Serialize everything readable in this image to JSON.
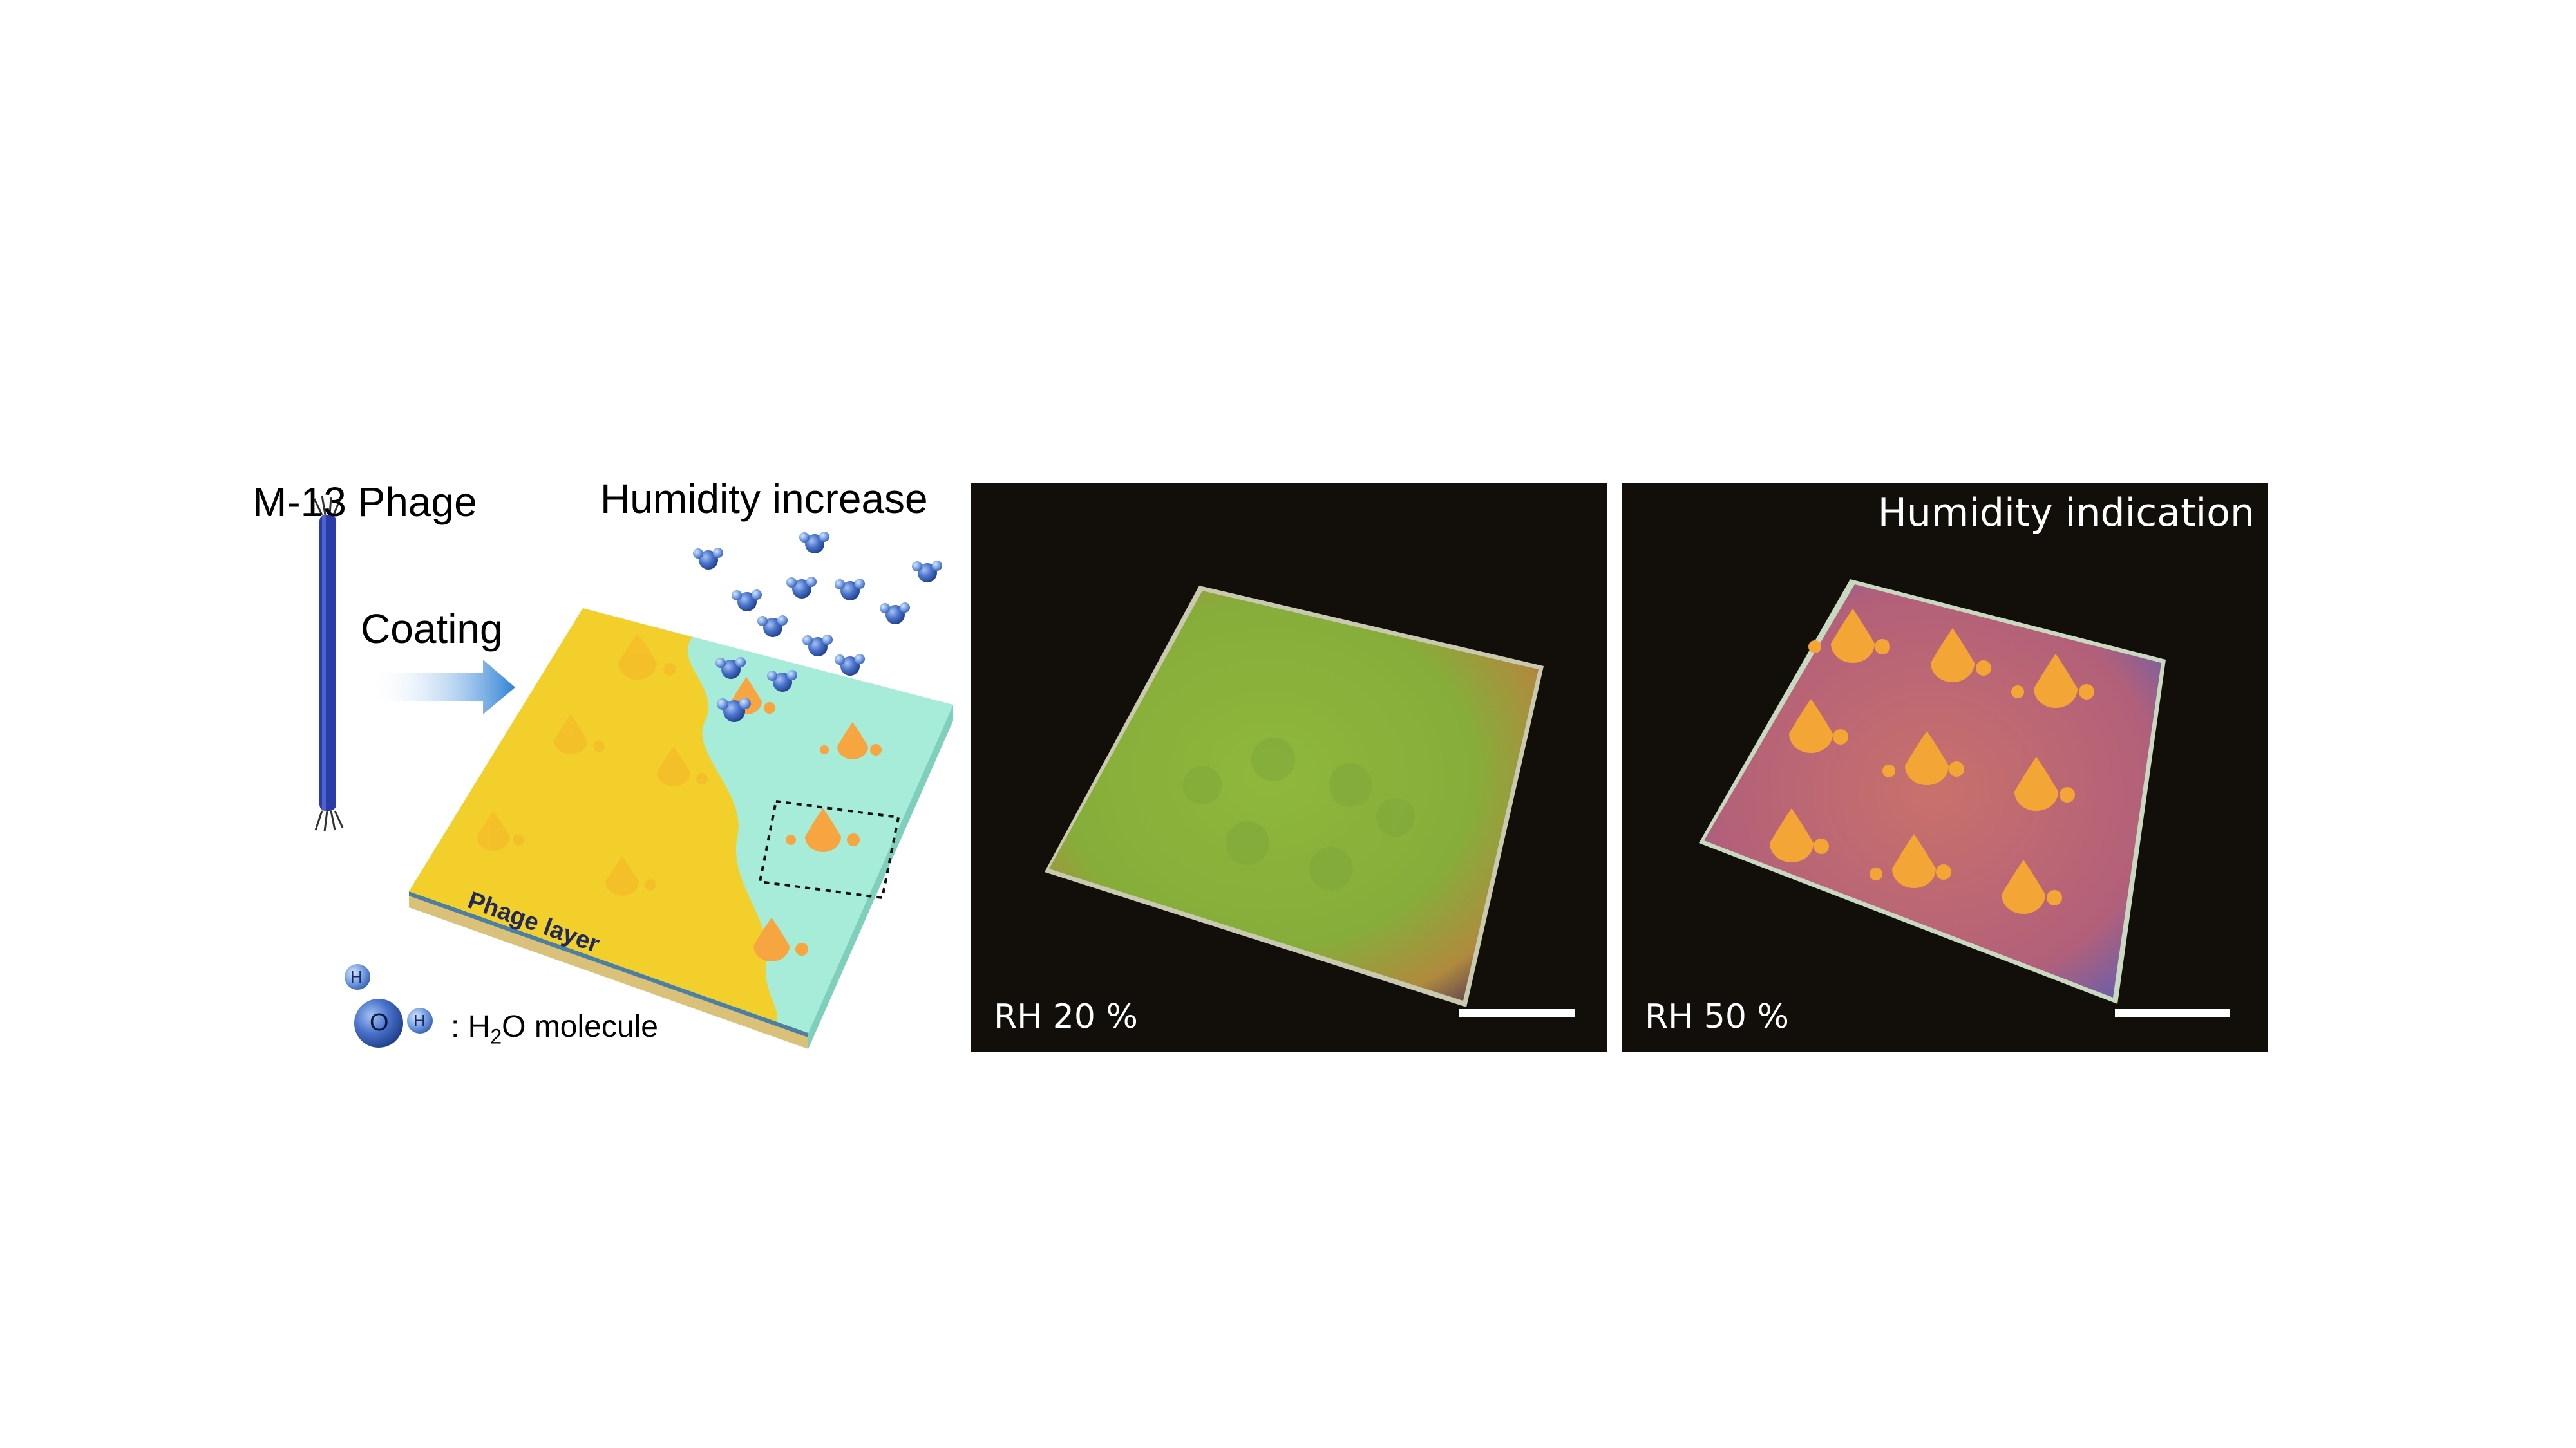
{
  "schematic": {
    "phage_label": "M-13 Phage",
    "humidity_label": "Humidity increase",
    "coating_label": "Coating",
    "layer_label": "Phage layer",
    "legend": {
      "atom_h": "H",
      "atom_o": "O",
      "text_prefix": ": H",
      "subscript": "2",
      "text_suffix": "O molecule"
    }
  },
  "photo_low": {
    "caption": "RH 20 %"
  },
  "photo_high": {
    "title": "Humidity indication",
    "caption": "RH 50 %"
  },
  "colors": {
    "dry_film": "#f2cf2a",
    "wet_film": "#a6ecd8",
    "droplet_orange": "#f6a540",
    "water_molecule": "#3e67c2",
    "photo_background": "#120e0a"
  }
}
